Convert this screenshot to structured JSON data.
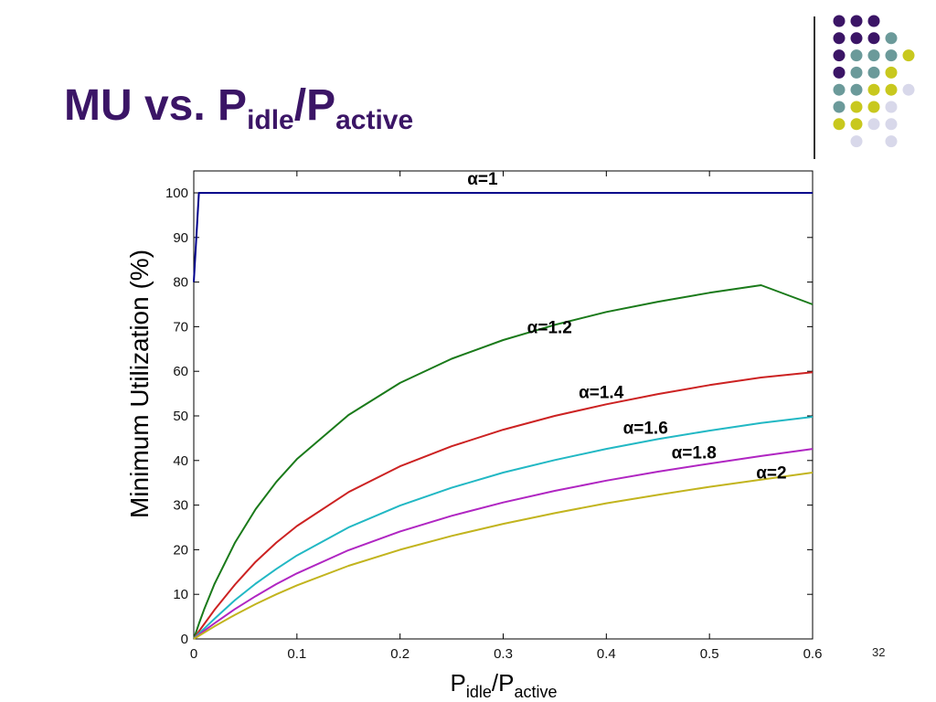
{
  "slide": {
    "title_main": "MU vs. P",
    "title_sub1": "idle",
    "title_sep": "/P",
    "title_sub2": "active",
    "page_number": "32",
    "accent_colors": [
      "#3b1566",
      "#6b9a9a",
      "#c8c81e",
      "#d8d8ea"
    ]
  },
  "chart_data": {
    "type": "line",
    "xlabel_main1": "P",
    "xlabel_sub1": "idle",
    "xlabel_sep": "/P",
    "xlabel_sub2": "active",
    "ylabel": "Minimum Utilization (%)",
    "xlim": [
      0,
      0.6
    ],
    "ylim": [
      0,
      100
    ],
    "grid": false,
    "x_ticks": [
      "0",
      "0.1",
      "0.2",
      "0.3",
      "0.4",
      "0.5",
      "0.6"
    ],
    "y_ticks": [
      "0",
      "10",
      "20",
      "30",
      "40",
      "50",
      "60",
      "70",
      "80",
      "90",
      "100"
    ],
    "x": [
      0,
      0.005,
      0.01,
      0.02,
      0.04,
      0.06,
      0.08,
      0.1,
      0.15,
      0.2,
      0.25,
      0.3,
      0.35,
      0.4,
      0.45,
      0.5,
      0.55,
      0.6
    ],
    "series": [
      {
        "name": "α=1",
        "color": "#00008b",
        "values": [
          80,
          100,
          100,
          100,
          100,
          100,
          100,
          100,
          100,
          100,
          100,
          100,
          100,
          100,
          100,
          100,
          100,
          100
        ]
      },
      {
        "name": "α=1.2",
        "color": "#1a7a1a",
        "values": [
          0,
          3.4,
          6.6,
          12.3,
          21.6,
          29.1,
          35.2,
          40.3,
          50.2,
          57.4,
          62.8,
          67.0,
          70.4,
          73.3,
          75.6,
          77.6,
          79.3,
          75.0
        ]
      },
      {
        "name": "α=1.4",
        "color": "#cc2222",
        "values": [
          0,
          1.7,
          3.3,
          6.5,
          12.2,
          17.3,
          21.6,
          25.3,
          32.9,
          38.7,
          43.2,
          46.9,
          50.0,
          52.6,
          54.9,
          56.9,
          58.6,
          59.8
        ]
      },
      {
        "name": "α=1.6",
        "color": "#22b8c4",
        "values": [
          0,
          1.2,
          2.3,
          4.5,
          8.7,
          12.4,
          15.7,
          18.7,
          25.0,
          29.9,
          33.9,
          37.3,
          40.1,
          42.6,
          44.8,
          46.7,
          48.4,
          49.8
        ]
      },
      {
        "name": "α=1.8",
        "color": "#b026c2",
        "values": [
          0,
          0.9,
          1.8,
          3.5,
          6.7,
          9.6,
          12.3,
          14.7,
          19.9,
          24.1,
          27.6,
          30.6,
          33.2,
          35.5,
          37.5,
          39.3,
          41.0,
          42.6
        ]
      },
      {
        "name": "α=2",
        "color": "#c2b41e",
        "values": [
          0,
          0.7,
          1.4,
          2.8,
          5.4,
          7.8,
          10.0,
          12.0,
          16.4,
          20.0,
          23.1,
          25.8,
          28.2,
          30.4,
          32.3,
          34.1,
          35.7,
          37.3
        ]
      }
    ],
    "annotations": [
      {
        "text": "α=1",
        "x": 0.28,
        "y": 101.8
      },
      {
        "text": "α=1.2",
        "x": 0.345,
        "y": 68.5
      },
      {
        "text": "α=1.4",
        "x": 0.395,
        "y": 54.0
      },
      {
        "text": "α=1.6",
        "x": 0.438,
        "y": 46.0
      },
      {
        "text": "α=1.8",
        "x": 0.485,
        "y": 40.5
      },
      {
        "text": "α=2",
        "x": 0.56,
        "y": 36.0
      }
    ]
  }
}
